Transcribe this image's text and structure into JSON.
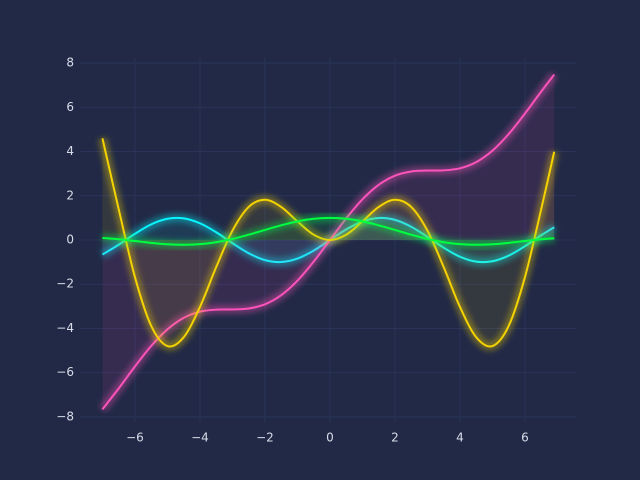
{
  "chart_data": {
    "type": "line",
    "x": [
      -7,
      -6.5,
      -6,
      -5.5,
      -5,
      -4.5,
      -4,
      -3.5,
      -3,
      -2.5,
      -2,
      -1.5,
      -1,
      -0.5,
      0,
      0.5,
      1,
      1.5,
      2,
      2.5,
      3,
      3.5,
      4,
      4.5,
      5,
      5.5,
      6,
      6.5,
      6.9
    ],
    "series": [
      {
        "color": "#08F7FE",
        "values": [
          -0.657,
          -0.215,
          0.279,
          0.706,
          0.959,
          0.978,
          0.757,
          0.351,
          -0.141,
          -0.598,
          -0.909,
          -0.997,
          -0.841,
          -0.479,
          0,
          0.479,
          0.841,
          0.997,
          0.909,
          0.598,
          0.141,
          -0.351,
          -0.757,
          -0.978,
          -0.959,
          -0.706,
          -0.279,
          0.215,
          0.578
        ]
      },
      {
        "color": "#FE53BB",
        "values": [
          -7.657,
          -6.715,
          -5.721,
          -4.794,
          -4.041,
          -3.522,
          -3.243,
          -3.149,
          -3.141,
          -3.098,
          -2.909,
          -2.497,
          -1.841,
          -0.979,
          0,
          0.979,
          1.841,
          2.497,
          2.909,
          3.098,
          3.141,
          3.149,
          3.243,
          3.522,
          4.041,
          4.794,
          5.721,
          6.715,
          7.478
        ]
      },
      {
        "color": "#F5D300",
        "values": [
          4.599,
          1.398,
          -1.676,
          -3.883,
          -4.795,
          -4.399,
          -3.027,
          -1.228,
          0.423,
          1.496,
          1.819,
          1.496,
          0.841,
          0.24,
          0,
          0.24,
          0.841,
          1.496,
          1.819,
          1.496,
          0.423,
          -1.228,
          -3.027,
          -4.399,
          -4.795,
          -3.883,
          -1.676,
          1.398,
          3.99
        ]
      },
      {
        "color": "#00ff41",
        "values": [
          0.094,
          0.033,
          -0.047,
          -0.128,
          -0.192,
          -0.217,
          -0.189,
          -0.1,
          0.047,
          0.239,
          0.455,
          0.665,
          0.841,
          0.959,
          1,
          0.959,
          0.841,
          0.665,
          0.455,
          0.239,
          0.047,
          -0.1,
          -0.189,
          -0.217,
          -0.192,
          -0.128,
          -0.047,
          0.033,
          0.084
        ]
      }
    ],
    "xlim": [
      -7.69,
      7.57
    ],
    "ylim": [
      -8.23,
      8.23
    ],
    "xticks": [
      {
        "value": -6,
        "label": "−6"
      },
      {
        "value": -4,
        "label": "−4"
      },
      {
        "value": -2,
        "label": "−2"
      },
      0,
      2,
      4,
      6
    ],
    "yticks": [
      {
        "value": -8,
        "label": "−8"
      },
      {
        "value": -6,
        "label": "−6"
      },
      {
        "value": -4,
        "label": "−4"
      },
      {
        "value": -2,
        "label": "−2"
      },
      0,
      2,
      4,
      6,
      8
    ],
    "grid": true,
    "glow": true,
    "underglow": true
  }
}
